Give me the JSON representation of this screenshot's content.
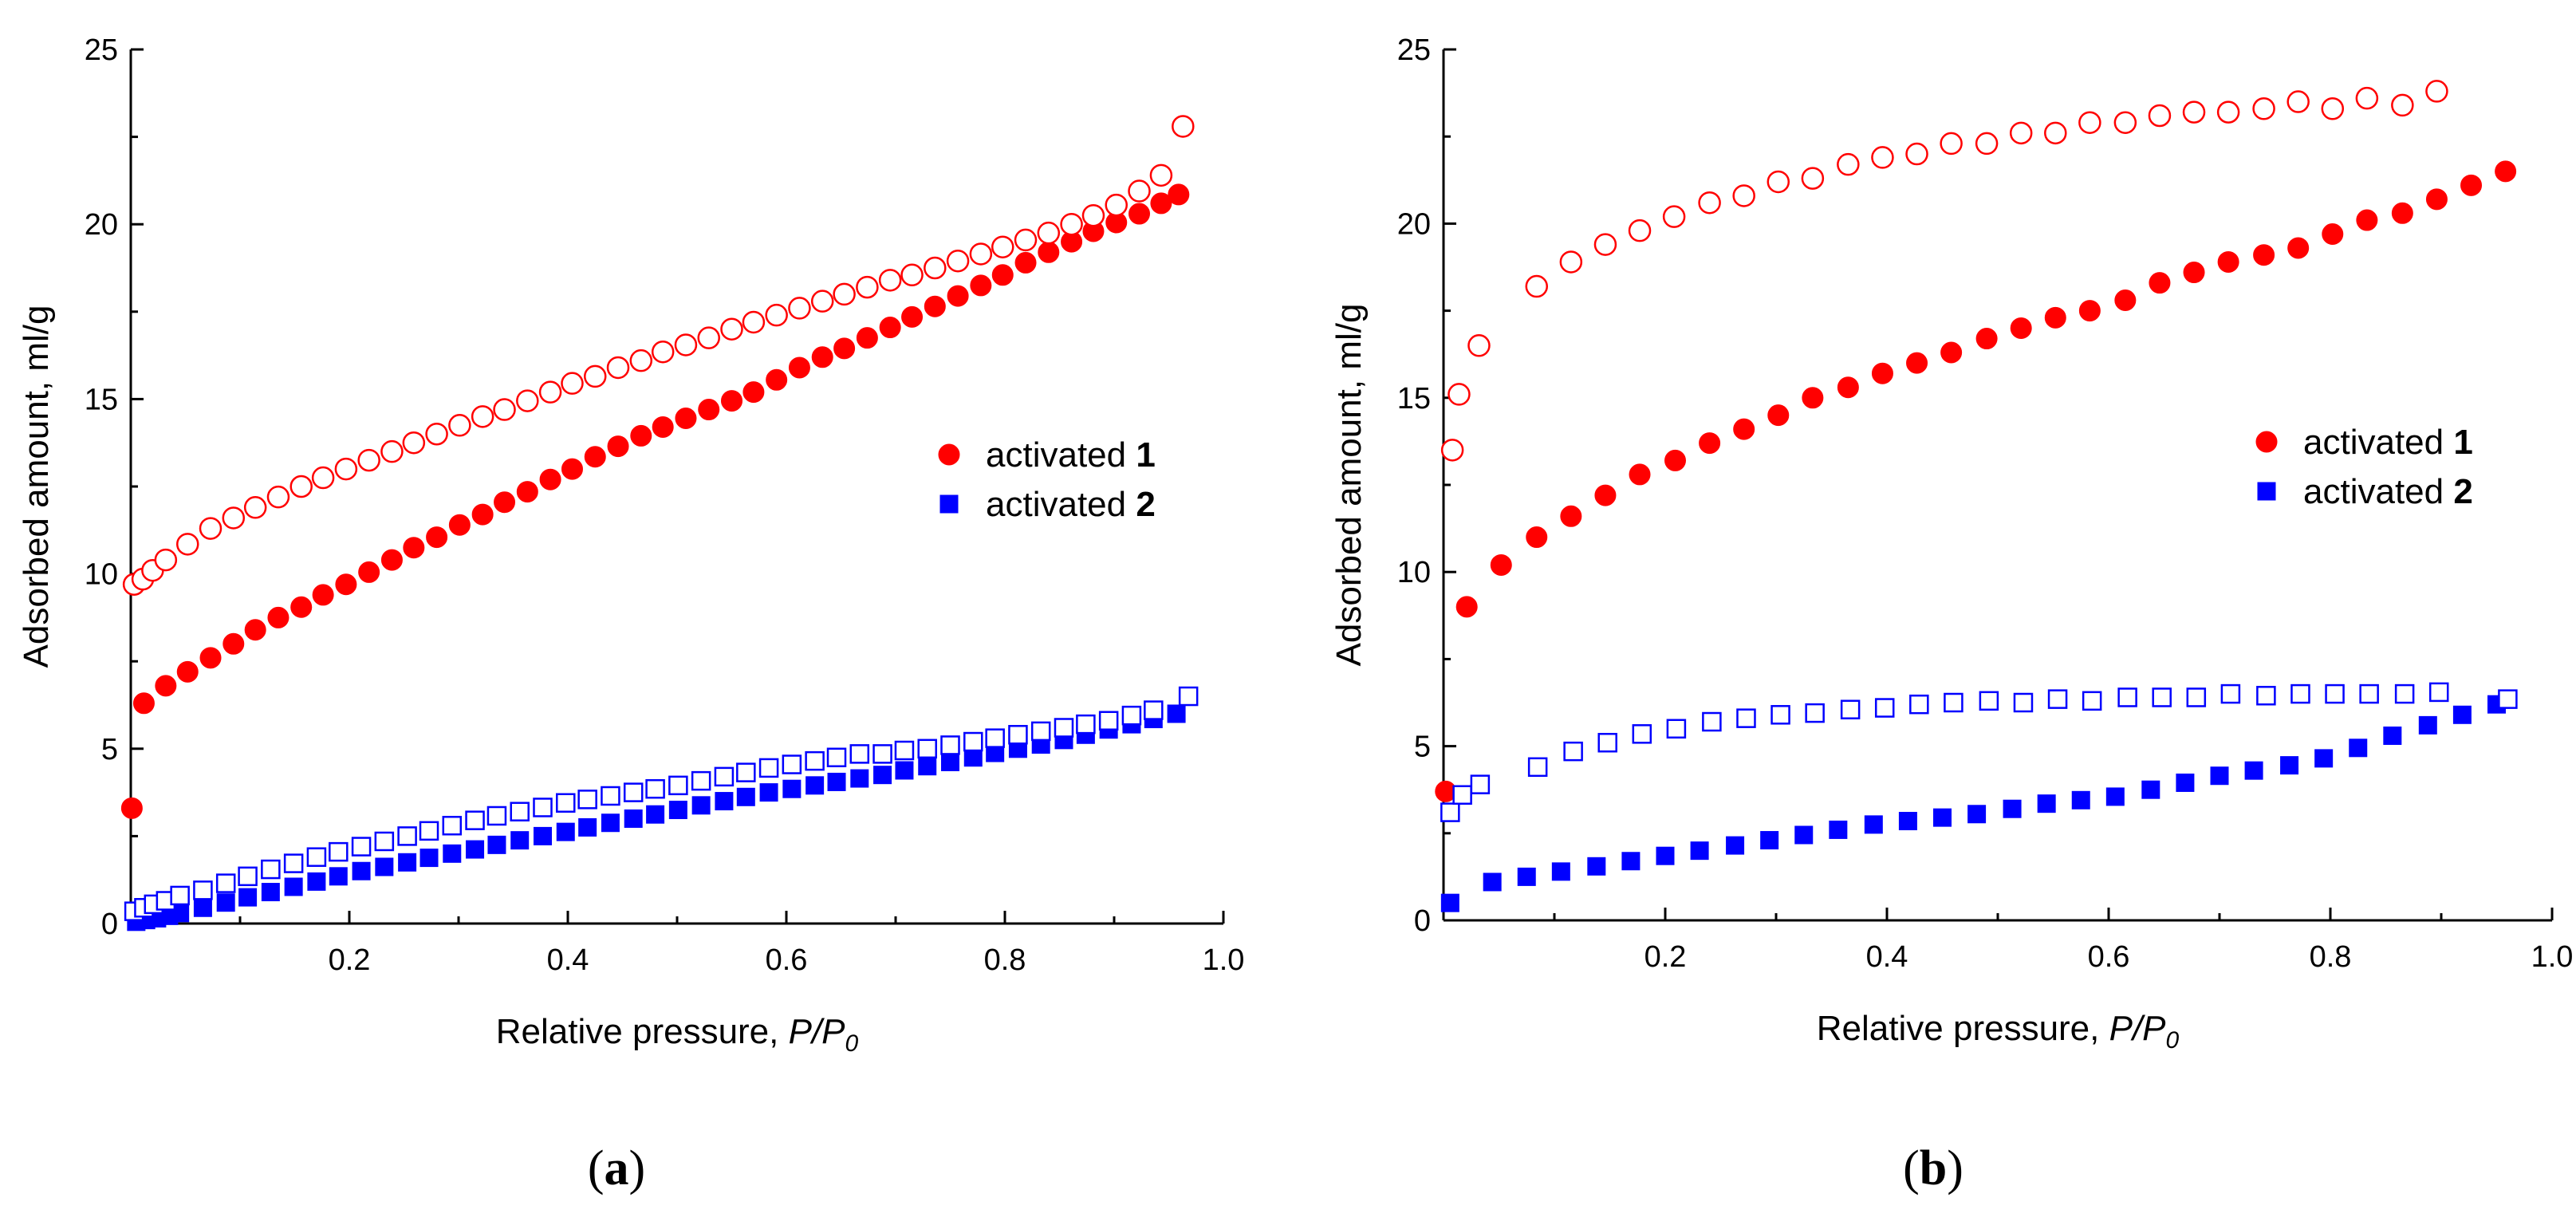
{
  "figure": {
    "panel_a_label": "a",
    "panel_b_label": "b"
  },
  "colors": {
    "series1": "#ff0000",
    "series2": "#0000ff"
  },
  "chart_data": [
    {
      "type": "scatter",
      "panel": "a",
      "xlabel": "Relative pressure, ",
      "xlabel_italic": "P/P",
      "xlabel_sub": "0",
      "ylabel": "Adsorbed amount, ml/g",
      "xlim": [
        0,
        1.0
      ],
      "ylim": [
        0,
        25
      ],
      "xticks": [
        0.2,
        0.4,
        0.6,
        0.8,
        1.0
      ],
      "xtick_labels": [
        "0.2",
        "0.4",
        "0.6",
        "0.8",
        "1.0"
      ],
      "yticks": [
        0,
        5,
        10,
        15,
        20,
        25
      ],
      "ytick_labels": [
        "0",
        "5",
        "10",
        "15",
        "20",
        "25"
      ],
      "legend": [
        {
          "text": "activated ",
          "num": "1",
          "marker": "circle"
        },
        {
          "text": "activated ",
          "num": "2",
          "marker": "square"
        }
      ],
      "series": [
        {
          "name": "activated 1 adsorption",
          "marker": "circle",
          "filled": true,
          "color": "#ff0000",
          "x": [
            0.001,
            0.012,
            0.032,
            0.052,
            0.073,
            0.094,
            0.114,
            0.135,
            0.156,
            0.176,
            0.197,
            0.218,
            0.239,
            0.259,
            0.28,
            0.301,
            0.322,
            0.342,
            0.363,
            0.384,
            0.404,
            0.425,
            0.446,
            0.467,
            0.487,
            0.508,
            0.529,
            0.55,
            0.57,
            0.591,
            0.612,
            0.633,
            0.653,
            0.674,
            0.695,
            0.715,
            0.736,
            0.757,
            0.778,
            0.798,
            0.819,
            0.84,
            0.861,
            0.881,
            0.902,
            0.923,
            0.943,
            0.959
          ],
          "y": [
            3.3,
            6.3,
            6.8,
            7.2,
            7.6,
            8.0,
            8.4,
            8.75,
            9.05,
            9.4,
            9.7,
            10.05,
            10.4,
            10.75,
            11.05,
            11.4,
            11.7,
            12.05,
            12.35,
            12.7,
            13.0,
            13.35,
            13.65,
            13.95,
            14.2,
            14.45,
            14.7,
            14.95,
            15.2,
            15.55,
            15.9,
            16.2,
            16.45,
            16.75,
            17.05,
            17.35,
            17.65,
            17.95,
            18.25,
            18.55,
            18.9,
            19.2,
            19.5,
            19.8,
            20.05,
            20.3,
            20.6,
            20.85
          ]
        },
        {
          "name": "activated 1 desorption",
          "marker": "circle",
          "filled": false,
          "color": "#ff0000",
          "x": [
            0.003,
            0.011,
            0.02,
            0.032,
            0.052,
            0.073,
            0.094,
            0.114,
            0.135,
            0.156,
            0.176,
            0.197,
            0.218,
            0.239,
            0.259,
            0.28,
            0.301,
            0.322,
            0.342,
            0.363,
            0.384,
            0.404,
            0.425,
            0.446,
            0.467,
            0.487,
            0.508,
            0.529,
            0.55,
            0.57,
            0.591,
            0.612,
            0.633,
            0.653,
            0.674,
            0.695,
            0.715,
            0.736,
            0.757,
            0.778,
            0.798,
            0.819,
            0.84,
            0.861,
            0.881,
            0.902,
            0.923,
            0.943,
            0.963
          ],
          "y": [
            9.7,
            9.85,
            10.1,
            10.4,
            10.85,
            11.3,
            11.6,
            11.9,
            12.2,
            12.5,
            12.75,
            13.0,
            13.25,
            13.5,
            13.75,
            14.0,
            14.25,
            14.5,
            14.7,
            14.95,
            15.2,
            15.45,
            15.65,
            15.9,
            16.1,
            16.35,
            16.55,
            16.75,
            17.0,
            17.2,
            17.4,
            17.6,
            17.8,
            18.0,
            18.2,
            18.4,
            18.55,
            18.75,
            18.95,
            19.15,
            19.35,
            19.55,
            19.75,
            20.0,
            20.25,
            20.55,
            20.95,
            21.4,
            22.8
          ]
        },
        {
          "name": "activated 2 adsorption",
          "marker": "square",
          "filled": true,
          "color": "#0000ff",
          "x": [
            0.005,
            0.014,
            0.024,
            0.035,
            0.045,
            0.066,
            0.087,
            0.107,
            0.128,
            0.149,
            0.17,
            0.19,
            0.211,
            0.232,
            0.253,
            0.273,
            0.294,
            0.315,
            0.335,
            0.356,
            0.377,
            0.398,
            0.418,
            0.439,
            0.46,
            0.48,
            0.501,
            0.522,
            0.543,
            0.563,
            0.584,
            0.605,
            0.626,
            0.646,
            0.667,
            0.688,
            0.708,
            0.729,
            0.75,
            0.771,
            0.791,
            0.812,
            0.833,
            0.854,
            0.874,
            0.895,
            0.916,
            0.936,
            0.957
          ],
          "y": [
            0.05,
            0.1,
            0.15,
            0.22,
            0.3,
            0.45,
            0.6,
            0.75,
            0.9,
            1.05,
            1.2,
            1.35,
            1.5,
            1.62,
            1.75,
            1.88,
            2.0,
            2.12,
            2.25,
            2.38,
            2.5,
            2.62,
            2.75,
            2.88,
            3.0,
            3.12,
            3.25,
            3.38,
            3.5,
            3.62,
            3.75,
            3.85,
            3.95,
            4.05,
            4.15,
            4.25,
            4.38,
            4.5,
            4.62,
            4.75,
            4.88,
            5.0,
            5.12,
            5.25,
            5.4,
            5.55,
            5.7,
            5.85,
            6.0
          ]
        },
        {
          "name": "activated 2 desorption",
          "marker": "square",
          "filled": false,
          "color": "#0000ff",
          "x": [
            0.003,
            0.012,
            0.021,
            0.032,
            0.045,
            0.066,
            0.087,
            0.107,
            0.128,
            0.149,
            0.17,
            0.19,
            0.211,
            0.232,
            0.253,
            0.273,
            0.294,
            0.315,
            0.335,
            0.356,
            0.377,
            0.398,
            0.418,
            0.439,
            0.46,
            0.48,
            0.501,
            0.522,
            0.543,
            0.563,
            0.584,
            0.605,
            0.626,
            0.646,
            0.667,
            0.688,
            0.708,
            0.729,
            0.75,
            0.771,
            0.791,
            0.812,
            0.833,
            0.854,
            0.874,
            0.895,
            0.916,
            0.936,
            0.968
          ],
          "y": [
            0.35,
            0.45,
            0.55,
            0.65,
            0.8,
            0.95,
            1.15,
            1.35,
            1.55,
            1.72,
            1.9,
            2.05,
            2.2,
            2.35,
            2.5,
            2.65,
            2.8,
            2.95,
            3.08,
            3.2,
            3.32,
            3.45,
            3.55,
            3.65,
            3.75,
            3.85,
            3.95,
            4.08,
            4.2,
            4.32,
            4.45,
            4.55,
            4.65,
            4.75,
            4.85,
            4.85,
            4.95,
            5.0,
            5.1,
            5.2,
            5.3,
            5.4,
            5.5,
            5.6,
            5.7,
            5.8,
            5.95,
            6.1,
            6.5
          ]
        }
      ]
    },
    {
      "type": "scatter",
      "panel": "b",
      "xlabel": "Relative pressure, ",
      "xlabel_italic": "P/P",
      "xlabel_sub": "0",
      "ylabel": "Adsorbed amount, ml/g",
      "xlim": [
        0,
        1.0
      ],
      "ylim": [
        0,
        25
      ],
      "xticks": [
        0.2,
        0.4,
        0.6,
        0.8,
        1.0
      ],
      "xtick_labels": [
        "0.2",
        "0.4",
        "0.6",
        "0.8",
        "1.0"
      ],
      "yticks": [
        0,
        5,
        10,
        15,
        20,
        25
      ],
      "ytick_labels": [
        "0",
        "5",
        "10",
        "15",
        "20",
        "25"
      ],
      "legend": [
        {
          "text": "activated ",
          "num": "1",
          "marker": "circle"
        },
        {
          "text": "activated ",
          "num": "2",
          "marker": "square"
        }
      ],
      "series": [
        {
          "name": "activated 1 adsorption",
          "marker": "circle",
          "filled": true,
          "color": "#ff0000",
          "x": [
            0.002,
            0.021,
            0.052,
            0.084,
            0.115,
            0.146,
            0.177,
            0.209,
            0.24,
            0.271,
            0.302,
            0.333,
            0.365,
            0.396,
            0.427,
            0.458,
            0.49,
            0.521,
            0.552,
            0.583,
            0.615,
            0.646,
            0.677,
            0.708,
            0.74,
            0.771,
            0.802,
            0.833,
            0.865,
            0.896,
            0.927,
            0.958
          ],
          "y": [
            3.7,
            9.0,
            10.2,
            11.0,
            11.6,
            12.2,
            12.8,
            13.2,
            13.7,
            14.1,
            14.5,
            15.0,
            15.3,
            15.7,
            16.0,
            16.3,
            16.7,
            17.0,
            17.3,
            17.5,
            17.8,
            18.3,
            18.6,
            18.9,
            19.1,
            19.3,
            19.7,
            20.1,
            20.3,
            20.7,
            21.1,
            21.5
          ]
        },
        {
          "name": "activated 1 desorption",
          "marker": "circle",
          "filled": false,
          "color": "#ff0000",
          "x": [
            0.008,
            0.014,
            0.032,
            0.084,
            0.115,
            0.146,
            0.177,
            0.208,
            0.24,
            0.271,
            0.302,
            0.333,
            0.365,
            0.396,
            0.427,
            0.458,
            0.49,
            0.521,
            0.552,
            0.583,
            0.615,
            0.646,
            0.677,
            0.708,
            0.74,
            0.771,
            0.802,
            0.833,
            0.865,
            0.896
          ],
          "y": [
            13.5,
            15.1,
            16.5,
            18.2,
            18.9,
            19.4,
            19.8,
            20.2,
            20.6,
            20.8,
            21.2,
            21.3,
            21.7,
            21.9,
            22.0,
            22.3,
            22.3,
            22.6,
            22.6,
            22.9,
            22.9,
            23.1,
            23.2,
            23.2,
            23.3,
            23.5,
            23.3,
            23.6,
            23.4,
            23.8
          ]
        },
        {
          "name": "activated 2 adsorption",
          "marker": "square",
          "filled": true,
          "color": "#0000ff",
          "x": [
            0.006,
            0.044,
            0.075,
            0.106,
            0.138,
            0.169,
            0.2,
            0.231,
            0.263,
            0.294,
            0.325,
            0.356,
            0.388,
            0.419,
            0.45,
            0.481,
            0.513,
            0.544,
            0.575,
            0.606,
            0.638,
            0.669,
            0.7,
            0.731,
            0.763,
            0.794,
            0.825,
            0.856,
            0.888,
            0.919,
            0.95
          ],
          "y": [
            0.5,
            1.1,
            1.25,
            1.4,
            1.55,
            1.7,
            1.85,
            2.0,
            2.15,
            2.3,
            2.45,
            2.6,
            2.75,
            2.85,
            2.95,
            3.05,
            3.2,
            3.35,
            3.45,
            3.55,
            3.75,
            3.95,
            4.15,
            4.3,
            4.45,
            4.65,
            4.95,
            5.3,
            5.6,
            5.9,
            6.2
          ]
        },
        {
          "name": "activated 2 desorption",
          "marker": "square",
          "filled": false,
          "color": "#0000ff",
          "x": [
            0.006,
            0.017,
            0.033,
            0.085,
            0.117,
            0.148,
            0.179,
            0.21,
            0.242,
            0.273,
            0.304,
            0.335,
            0.367,
            0.398,
            0.429,
            0.46,
            0.492,
            0.523,
            0.554,
            0.585,
            0.617,
            0.648,
            0.679,
            0.71,
            0.742,
            0.773,
            0.804,
            0.835,
            0.867,
            0.898,
            0.96
          ],
          "y": [
            3.1,
            3.6,
            3.9,
            4.4,
            4.85,
            5.1,
            5.35,
            5.5,
            5.7,
            5.8,
            5.9,
            5.95,
            6.05,
            6.1,
            6.2,
            6.25,
            6.3,
            6.25,
            6.35,
            6.3,
            6.4,
            6.4,
            6.4,
            6.5,
            6.45,
            6.5,
            6.5,
            6.5,
            6.5,
            6.55,
            6.35
          ]
        }
      ]
    }
  ]
}
